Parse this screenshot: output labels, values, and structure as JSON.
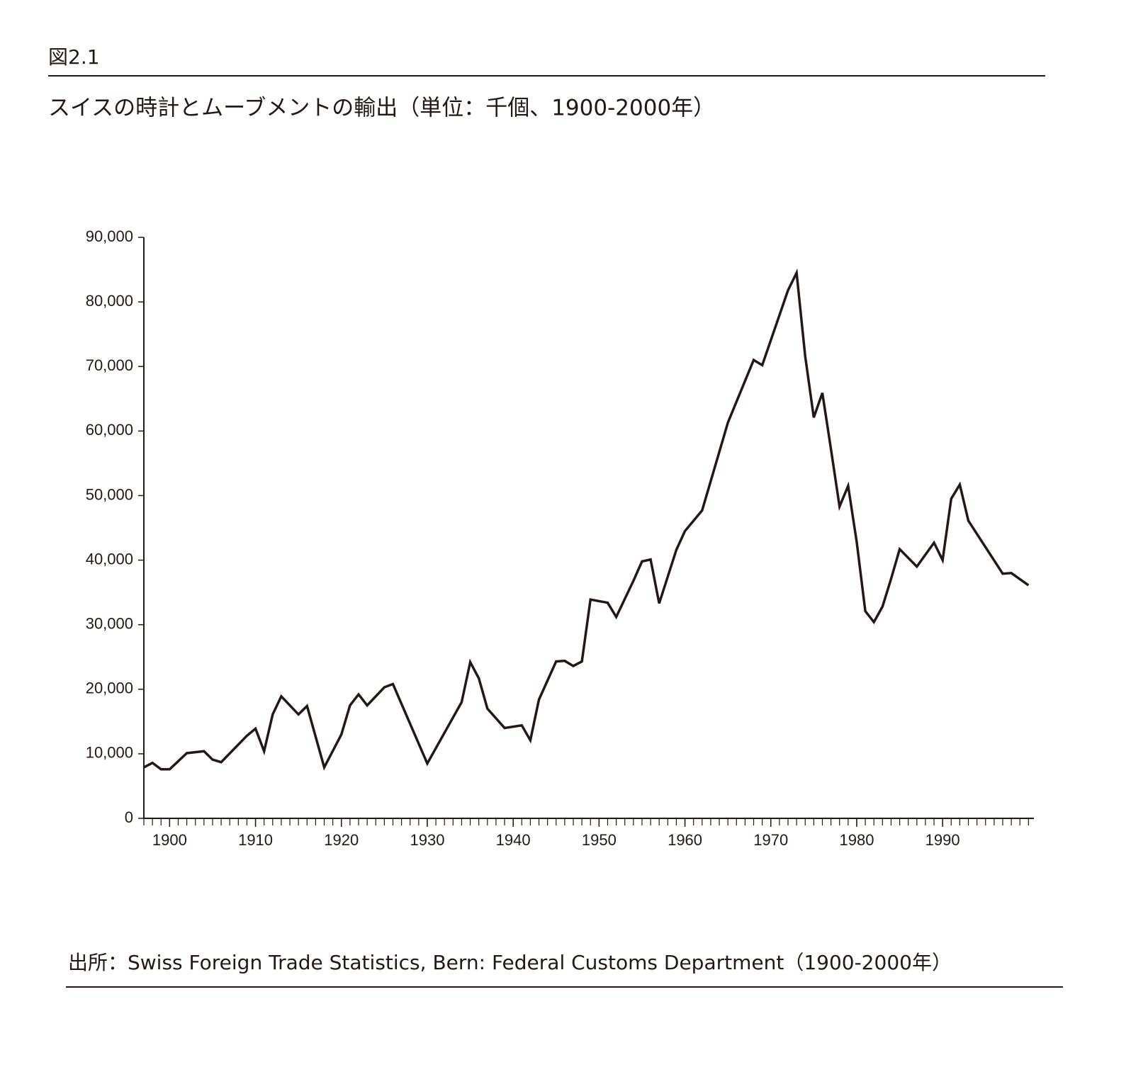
{
  "figure_label": "図2.1",
  "chart_data": {
    "type": "line",
    "title": "スイスの時計とムーブメントの輸出（単位：千個、1900-2000年）",
    "x": [
      1897,
      1898,
      1899,
      1900,
      1902,
      1904,
      1905,
      1906,
      1909,
      1910,
      1911,
      1912,
      1913,
      1915,
      1916,
      1918,
      1920,
      1921,
      1922,
      1923,
      1925,
      1926,
      1930,
      1934,
      1935,
      1936,
      1937,
      1939,
      1941,
      1942,
      1943,
      1945,
      1946,
      1947,
      1948,
      1949,
      1951,
      1952,
      1954,
      1955,
      1956,
      1957,
      1959,
      1960,
      1962,
      1965,
      1968,
      1969,
      1972,
      1973,
      1974,
      1975,
      1976,
      1977,
      1978,
      1979,
      1980,
      1981,
      1982,
      1983,
      1984,
      1985,
      1987,
      1989,
      1990,
      1991,
      1992,
      1993,
      1997,
      1998,
      2000
    ],
    "series": [
      {
        "name": "輸出",
        "color": "#231815",
        "values": [
          7900,
          8600,
          7600,
          7600,
          10100,
          10400,
          9100,
          8700,
          12800,
          13900,
          10400,
          16100,
          18900,
          16100,
          17400,
          7900,
          13000,
          17500,
          19200,
          17500,
          20300,
          20800,
          8500,
          18000,
          24200,
          21700,
          17000,
          14000,
          14400,
          12100,
          18400,
          24300,
          24400,
          23600,
          24300,
          33900,
          33400,
          31200,
          36800,
          39800,
          40100,
          33300,
          41600,
          44500,
          47700,
          61300,
          71000,
          70200,
          81800,
          84500,
          71600,
          62100,
          65900,
          57200,
          48300,
          51500,
          42800,
          32100,
          30400,
          32800,
          37100,
          41700,
          39000,
          42700,
          40000,
          49500,
          51700,
          46100,
          37900,
          38000,
          36100
        ]
      }
    ],
    "xlim": [
      1897,
      2000.3
    ],
    "xticks": [
      1900,
      1910,
      1920,
      1930,
      1940,
      1950,
      1960,
      1970,
      1980,
      1990
    ],
    "ylim": [
      0,
      90000
    ],
    "yticks": [
      0,
      {
        "value": 10000,
        "label": "10,000"
      },
      {
        "value": 20000,
        "label": "20,000"
      },
      {
        "value": 30000,
        "label": "30,000"
      },
      {
        "value": 40000,
        "label": "40,000"
      },
      {
        "value": 50000,
        "label": "50,000"
      },
      {
        "value": 60000,
        "label": "60,000"
      },
      {
        "value": 70000,
        "label": "70,000"
      },
      {
        "value": 80000,
        "label": "80,000"
      },
      {
        "value": 90000,
        "label": "90,000"
      }
    ],
    "grid": false
  },
  "source": "出所：Swiss Foreign Trade Statistics, Bern: Federal Customs Department（1900-2000年）"
}
